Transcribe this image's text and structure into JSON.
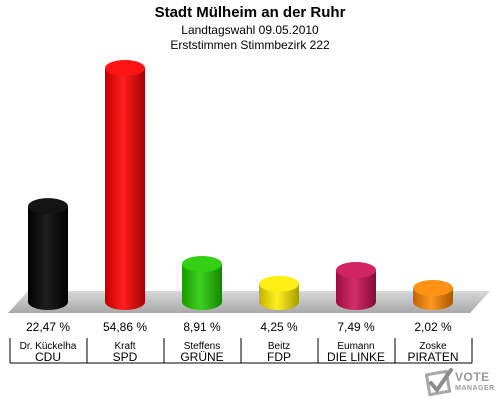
{
  "header": {
    "title": "Stadt Mülheim an der Ruhr",
    "subtitle_1": "Landtagswahl 09.05.2010",
    "subtitle_2": "Erststimmen Stimmbezirk 222"
  },
  "logo": {
    "line1": "VOTE",
    "line2": "MANAGER"
  },
  "chart_data": {
    "type": "bar",
    "title": "Stadt Mülheim an der Ruhr",
    "categories": [
      "CDU",
      "SPD",
      "GRÜNE",
      "FDP",
      "DIE LINKE",
      "PIRATEN"
    ],
    "candidates": [
      "Dr. Kückelha",
      "Kraft",
      "Steffens",
      "Beitz",
      "Eumann",
      "Zoske"
    ],
    "values": [
      22.47,
      54.86,
      8.91,
      4.25,
      7.49,
      2.02
    ],
    "value_labels": [
      "22,47 %",
      "54,86 %",
      "8,91 %",
      "4,25 %",
      "7,49 %",
      "2,02 %"
    ],
    "colors": [
      "#000000",
      "#ff0000",
      "#22cc00",
      "#ffee00",
      "#cc1155",
      "#ff8800"
    ],
    "ylim": [
      0,
      54.86
    ],
    "grid": false,
    "legend": "none"
  }
}
